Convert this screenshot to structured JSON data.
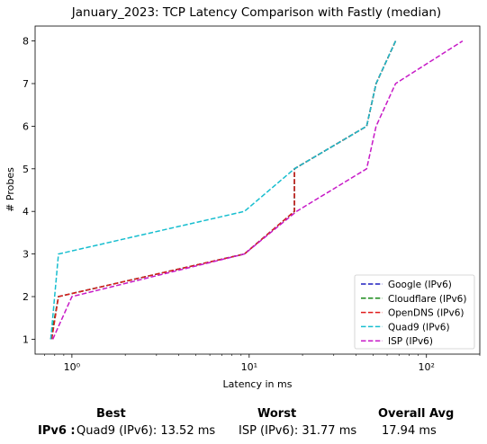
{
  "chart_data": {
    "type": "line",
    "title": "January_2023: TCP Latency Comparison with Fastly (median)",
    "xlabel": "Latency in ms",
    "ylabel": "# Probes",
    "xscale": "log",
    "xlim": [
      0.62,
      200
    ],
    "ylim": [
      0.65,
      8.35
    ],
    "xticks": [
      {
        "value": 1,
        "label": "10⁰"
      },
      {
        "value": 10,
        "label": "10¹"
      },
      {
        "value": 100,
        "label": "10²"
      }
    ],
    "yticks": [
      1,
      2,
      3,
      4,
      5,
      6,
      7,
      8
    ],
    "grid": false,
    "legend_position": "lower-right",
    "series": [
      {
        "name": "Google (IPv6)",
        "color": "#1f1fbf",
        "x": [
          0.76,
          0.84,
          9.4,
          18.0,
          18.0,
          46.0,
          52.0,
          67.0
        ],
        "y": [
          1,
          2,
          3,
          4,
          5,
          6,
          7,
          8
        ]
      },
      {
        "name": "Cloudflare (IPv6)",
        "color": "#1a8a1a",
        "x": [
          0.76,
          0.84,
          9.4,
          18.0,
          18.0,
          46.0,
          52.0,
          67.0
        ],
        "y": [
          1,
          2,
          3,
          4,
          5,
          6,
          7,
          8
        ]
      },
      {
        "name": "OpenDNS (IPv6)",
        "color": "#e01b1b",
        "x": [
          0.77,
          0.84,
          9.4,
          18.0,
          18.0,
          46.0,
          52.0,
          67.0
        ],
        "y": [
          1,
          2,
          3,
          4,
          5,
          6,
          7,
          8
        ]
      },
      {
        "name": "Quad9 (IPv6)",
        "color": "#17becf",
        "x": [
          0.76,
          0.84,
          9.4,
          18.0,
          46.0,
          52.0,
          67.0
        ],
        "y": [
          1,
          3,
          4,
          5,
          6,
          7,
          8
        ]
      },
      {
        "name": "ISP (IPv6)",
        "color": "#c71ac7",
        "x": [
          0.78,
          1.0,
          9.4,
          18.5,
          46.0,
          52.0,
          67.0,
          160.0
        ],
        "y": [
          1,
          2,
          3,
          4,
          5,
          6,
          7,
          8
        ]
      }
    ]
  },
  "summary": {
    "row_label": "IPv6 :",
    "headers": {
      "best": "Best",
      "worst": "Worst",
      "avg": "Overall Avg"
    },
    "best": "Quad9 (IPv6): 13.52 ms",
    "worst": "ISP (IPv6): 31.77 ms",
    "avg": "17.94 ms"
  }
}
